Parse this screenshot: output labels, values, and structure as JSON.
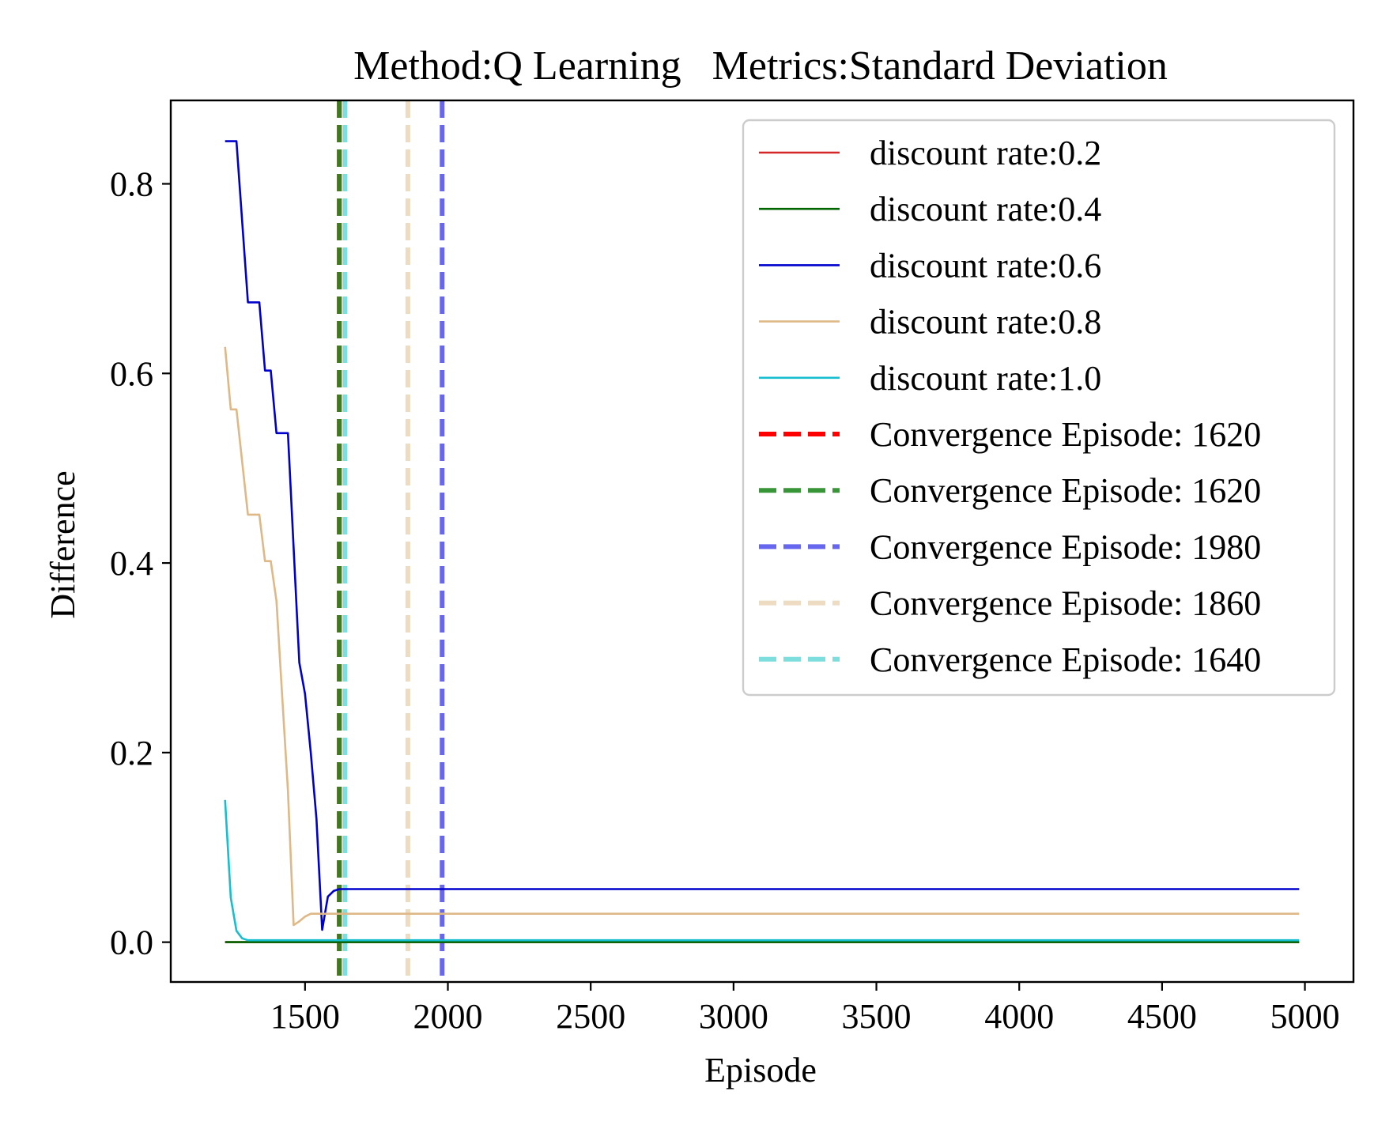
{
  "chart_data": {
    "type": "line",
    "title": "Method:Q Learning   Metrics:Standard Deviation",
    "xlabel": "Episode",
    "ylabel": "Difference",
    "xlim": [
      1030,
      5170
    ],
    "ylim": [
      -0.042,
      0.888
    ],
    "xticks": [
      1500,
      2000,
      2500,
      3000,
      3500,
      4000,
      4500,
      5000
    ],
    "xtick_labels": [
      "1500",
      "2000",
      "2500",
      "3000",
      "3500",
      "4000",
      "4500",
      "5000"
    ],
    "yticks": [
      0.0,
      0.2,
      0.4,
      0.6,
      0.8
    ],
    "ytick_labels": [
      "0.0",
      "0.2",
      "0.4",
      "0.6",
      "0.8"
    ],
    "grid": false,
    "legend_position": "top-right",
    "series": [
      {
        "name": "discount rate:0.2",
        "color": "#d62728",
        "points": [
          [
            1220,
            0.0
          ],
          [
            1300,
            0.0
          ],
          [
            1500,
            0.0
          ],
          [
            2000,
            0.0
          ],
          [
            3000,
            0.0
          ],
          [
            4000,
            0.0
          ],
          [
            4980,
            0.0
          ]
        ]
      },
      {
        "name": "discount rate:0.4",
        "color": "#006400",
        "points": [
          [
            1220,
            0.0
          ],
          [
            1300,
            0.0
          ],
          [
            1500,
            0.0
          ],
          [
            2000,
            0.0
          ],
          [
            3000,
            0.0
          ],
          [
            4000,
            0.0
          ],
          [
            4980,
            0.0
          ]
        ]
      },
      {
        "name": "discount rate:0.6",
        "color": "#0000cd",
        "points": [
          [
            1220,
            0.845
          ],
          [
            1260,
            0.845
          ],
          [
            1300,
            0.675
          ],
          [
            1340,
            0.675
          ],
          [
            1360,
            0.603
          ],
          [
            1380,
            0.603
          ],
          [
            1400,
            0.537
          ],
          [
            1440,
            0.537
          ],
          [
            1480,
            0.295
          ],
          [
            1500,
            0.262
          ],
          [
            1520,
            0.2
          ],
          [
            1540,
            0.13
          ],
          [
            1560,
            0.013
          ],
          [
            1580,
            0.048
          ],
          [
            1600,
            0.054
          ],
          [
            1620,
            0.056
          ],
          [
            2000,
            0.056
          ],
          [
            3000,
            0.056
          ],
          [
            4000,
            0.056
          ],
          [
            4980,
            0.056
          ]
        ]
      },
      {
        "name": "discount rate:0.8",
        "color": "#deb887",
        "points": [
          [
            1220,
            0.628
          ],
          [
            1240,
            0.562
          ],
          [
            1260,
            0.562
          ],
          [
            1300,
            0.451
          ],
          [
            1340,
            0.451
          ],
          [
            1360,
            0.402
          ],
          [
            1380,
            0.402
          ],
          [
            1400,
            0.36
          ],
          [
            1420,
            0.26
          ],
          [
            1440,
            0.16
          ],
          [
            1460,
            0.018
          ],
          [
            1480,
            0.022
          ],
          [
            1500,
            0.027
          ],
          [
            1520,
            0.03
          ],
          [
            1600,
            0.03
          ],
          [
            2000,
            0.03
          ],
          [
            3000,
            0.03
          ],
          [
            4000,
            0.03
          ],
          [
            4980,
            0.03
          ]
        ]
      },
      {
        "name": "discount rate:1.0",
        "color": "#17becf",
        "points": [
          [
            1220,
            0.15
          ],
          [
            1240,
            0.047
          ],
          [
            1260,
            0.012
          ],
          [
            1280,
            0.004
          ],
          [
            1300,
            0.002
          ],
          [
            1500,
            0.002
          ],
          [
            2000,
            0.002
          ],
          [
            3000,
            0.002
          ],
          [
            4000,
            0.002
          ],
          [
            4980,
            0.002
          ]
        ]
      }
    ],
    "vlines": [
      {
        "name": "Convergence Episode: 1620",
        "x": 1620,
        "color": "#ff0000",
        "opacity": 1.0
      },
      {
        "name": "Convergence Episode: 1620",
        "x": 1620,
        "color": "#228b22",
        "opacity": 0.9
      },
      {
        "name": "Convergence Episode: 1980",
        "x": 1980,
        "color": "#6666ee",
        "opacity": 1.0
      },
      {
        "name": "Convergence Episode: 1860",
        "x": 1860,
        "color": "#eedcc2",
        "opacity": 1.0
      },
      {
        "name": "Convergence Episode: 1640",
        "x": 1640,
        "color": "#7edede",
        "opacity": 1.0
      }
    ]
  }
}
